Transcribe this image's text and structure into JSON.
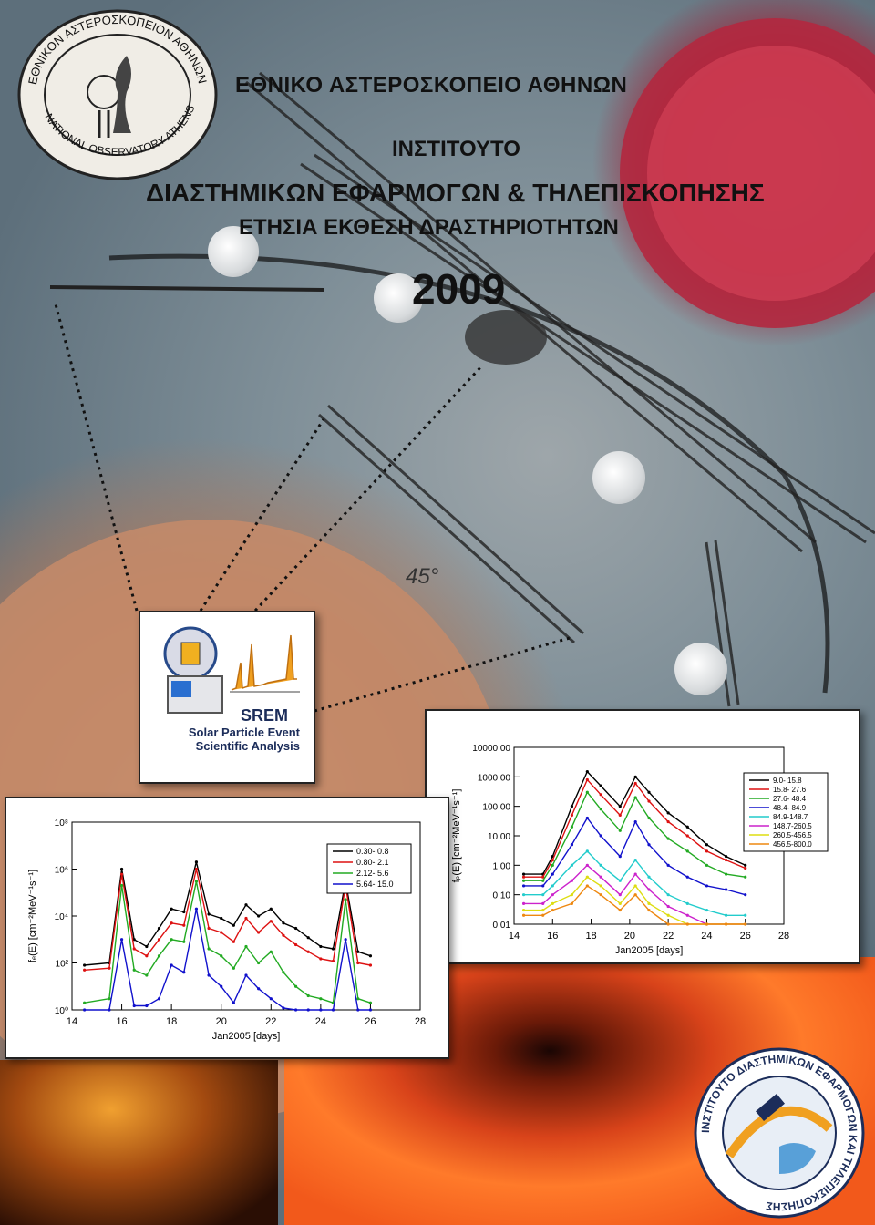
{
  "cover": {
    "title_line1": "ΕΘΝΙΚΟ ΑΣΤΕΡΟΣΚΟΠΕΙΟ ΑΘΗΝΩΝ",
    "title_line2": "ΙΝΣΤΙΤΟΥΤΟ",
    "title_line3": "ΔΙΑΣΤΗΜΙΚΩΝ ΕΦΑΡΜΟΓΩΝ & ΤΗΛΕΠΙΣΚΟΠΗΣΗΣ",
    "title_line4": "ΕΤΗΣΙΑ ΕΚΘΕΣΗ ΔΡΑΣΤΗΡΙΟΤΗΤΩΝ",
    "year": "2009",
    "map_angle_label": "45°"
  },
  "logos": {
    "observatory_seal_text_top": "ΕΘΝΙΚΟΝ ΑΣΤΕΡΟΣΚΟΠΕΙΟΝ ΑΘΗΝΩΝ",
    "observatory_seal_text_bottom": "NATIONAL OBSERVATORY ATHENS",
    "institute_seal_text": "ΙΝΣΤΙΤΟΥΤΟ ΔΙΑΣΤΗΜΙΚΩΝ ΕΦΑΡΜΟΓΩΝ ΚΑΙ ΤΗΛΕΠΙΣΚΟΠΗΣΗΣ"
  },
  "srem": {
    "title": "SREM",
    "subtitle_line1": "Solar Particle Event",
    "subtitle_line2": "Scientific Analysis"
  },
  "chart_data": [
    {
      "type": "line",
      "xlabel": "Jan2005 [days]",
      "ylabel": "fₑ(E) [cm⁻²MeV⁻¹s⁻¹]",
      "y_scale": "log",
      "xlim": [
        14,
        28
      ],
      "ylim": [
        1,
        100000000
      ],
      "x_ticks": [
        "14",
        "16",
        "18",
        "20",
        "22",
        "24",
        "26",
        "28"
      ],
      "y_ticks": [
        "10⁰",
        "10²",
        "10⁴",
        "10⁶",
        "10⁸"
      ],
      "legend_position": "top-right",
      "series": [
        {
          "name": "0.30-   0.8",
          "color": "#000000",
          "x": [
            14.5,
            15.5,
            16.0,
            16.5,
            17.0,
            17.5,
            18.0,
            18.5,
            19.0,
            19.5,
            20.0,
            20.5,
            21.0,
            21.5,
            22.0,
            22.5,
            23.0,
            23.5,
            24.0,
            24.5,
            25.0,
            25.5,
            26.0
          ],
          "y": [
            80,
            100,
            1000000,
            1000,
            500,
            3000,
            20000,
            15000,
            2000000,
            12000,
            8000,
            4000,
            30000,
            10000,
            20000,
            5000,
            3000,
            1200,
            500,
            400,
            300000,
            300,
            200
          ]
        },
        {
          "name": "0.80-   2.1",
          "color": "#dd1111",
          "x": [
            14.5,
            15.5,
            16.0,
            16.5,
            17.0,
            17.5,
            18.0,
            18.5,
            19.0,
            19.5,
            20.0,
            20.5,
            21.0,
            21.5,
            22.0,
            22.5,
            23.0,
            23.5,
            24.0,
            24.5,
            25.0,
            25.5,
            26.0
          ],
          "y": [
            50,
            60,
            600000,
            400,
            200,
            1000,
            5000,
            4000,
            1000000,
            3000,
            2000,
            800,
            8000,
            2000,
            6000,
            1500,
            600,
            300,
            150,
            120,
            200000,
            100,
            80
          ]
        },
        {
          "name": "2.12-   5.6",
          "color": "#22aa22",
          "x": [
            14.5,
            15.5,
            16.0,
            16.5,
            17.0,
            17.5,
            18.0,
            18.5,
            19.0,
            19.5,
            20.0,
            20.5,
            21.0,
            21.5,
            22.0,
            22.5,
            23.0,
            23.5,
            24.0,
            24.5,
            25.0,
            25.5,
            26.0
          ],
          "y": [
            2,
            3,
            200000,
            50,
            30,
            200,
            1000,
            800,
            300000,
            400,
            200,
            60,
            500,
            100,
            300,
            40,
            10,
            4,
            3,
            2,
            50000,
            3,
            2
          ]
        },
        {
          "name": "5.64-  15.0",
          "color": "#1111cc",
          "x": [
            14.5,
            15.5,
            16.0,
            16.5,
            17.0,
            17.5,
            18.0,
            18.5,
            19.0,
            19.5,
            20.0,
            20.5,
            21.0,
            21.5,
            22.0,
            22.5,
            23.0,
            23.5,
            24.0,
            24.5,
            25.0,
            25.5,
            26.0
          ],
          "y": [
            1,
            1,
            1000,
            1.5,
            1.5,
            3,
            80,
            40,
            20000,
            30,
            10,
            2,
            30,
            8,
            3,
            1.2,
            1,
            1,
            1,
            1,
            1000,
            1,
            1
          ]
        }
      ]
    },
    {
      "type": "line",
      "xlabel": "Jan2005 [days]",
      "ylabel": "fₚ(E) [cm⁻²MeV⁻¹s⁻¹]",
      "y_scale": "log",
      "xlim": [
        14,
        28
      ],
      "ylim": [
        0.01,
        10000
      ],
      "x_ticks": [
        "14",
        "16",
        "18",
        "20",
        "22",
        "24",
        "26",
        "28"
      ],
      "y_ticks": [
        "0.01",
        "0.10",
        "1.00",
        "10.00",
        "100.00",
        "1000.00",
        "10000.00"
      ],
      "legend_position": "top-right",
      "series": [
        {
          "name": "9.0-  15.8",
          "color": "#000000",
          "x": [
            14.5,
            15.5,
            16.0,
            17.0,
            17.8,
            18.5,
            19.5,
            20.3,
            21.0,
            22.0,
            23.0,
            24.0,
            25.0,
            26.0
          ],
          "y": [
            0.5,
            0.5,
            2,
            100,
            1500,
            500,
            100,
            1000,
            300,
            60,
            20,
            5,
            2,
            1
          ]
        },
        {
          "name": "15.8-  27.6",
          "color": "#dd1111",
          "x": [
            14.5,
            15.5,
            16.0,
            17.0,
            17.8,
            18.5,
            19.5,
            20.3,
            21.0,
            22.0,
            23.0,
            24.0,
            25.0,
            26.0
          ],
          "y": [
            0.4,
            0.4,
            1.5,
            50,
            800,
            250,
            50,
            600,
            150,
            30,
            10,
            3,
            1.5,
            0.8
          ]
        },
        {
          "name": "27.6-  48.4",
          "color": "#22aa22",
          "x": [
            14.5,
            15.5,
            16.0,
            17.0,
            17.8,
            18.5,
            19.5,
            20.3,
            21.0,
            22.0,
            23.0,
            24.0,
            25.0,
            26.0
          ],
          "y": [
            0.3,
            0.3,
            1,
            20,
            300,
            80,
            15,
            200,
            40,
            8,
            3,
            1,
            0.5,
            0.4
          ]
        },
        {
          "name": "48.4-  84.9",
          "color": "#1111cc",
          "x": [
            14.5,
            15.5,
            16.0,
            17.0,
            17.8,
            18.5,
            19.5,
            20.3,
            21.0,
            22.0,
            23.0,
            24.0,
            25.0,
            26.0
          ],
          "y": [
            0.2,
            0.2,
            0.5,
            5,
            40,
            10,
            2,
            30,
            5,
            1,
            0.4,
            0.2,
            0.15,
            0.1
          ]
        },
        {
          "name": "84.9-148.7",
          "color": "#22cccc",
          "x": [
            14.5,
            15.5,
            16.0,
            17.0,
            17.8,
            18.5,
            19.5,
            20.3,
            21.0,
            22.0,
            23.0,
            24.0,
            25.0,
            26.0
          ],
          "y": [
            0.1,
            0.1,
            0.2,
            1,
            3,
            1,
            0.3,
            1.5,
            0.4,
            0.1,
            0.05,
            0.03,
            0.02,
            0.02
          ]
        },
        {
          "name": "148.7-260.5",
          "color": "#cc22cc",
          "x": [
            14.5,
            15.5,
            16.0,
            17.0,
            17.8,
            18.5,
            19.5,
            20.3,
            21.0,
            22.0,
            23.0,
            24.0,
            25.0,
            26.0
          ],
          "y": [
            0.05,
            0.05,
            0.1,
            0.3,
            1,
            0.4,
            0.1,
            0.5,
            0.15,
            0.04,
            0.02,
            0.01,
            0.01,
            0.01
          ]
        },
        {
          "name": "260.5-456.5",
          "color": "#dddd11",
          "x": [
            14.5,
            15.5,
            16.0,
            17.0,
            17.8,
            18.5,
            19.5,
            20.3,
            21.0,
            22.0,
            23.0,
            24.0,
            25.0,
            26.0
          ],
          "y": [
            0.03,
            0.03,
            0.05,
            0.1,
            0.4,
            0.2,
            0.05,
            0.2,
            0.05,
            0.02,
            0.01,
            0.01,
            0.01,
            0.01
          ]
        },
        {
          "name": "456.5-800.0",
          "color": "#ee8811",
          "x": [
            14.5,
            15.5,
            16.0,
            17.0,
            17.8,
            18.5,
            19.5,
            20.3,
            21.0,
            22.0,
            23.0,
            24.0,
            25.0,
            26.0
          ],
          "y": [
            0.02,
            0.02,
            0.03,
            0.05,
            0.2,
            0.1,
            0.03,
            0.1,
            0.03,
            0.01,
            0.01,
            0.01,
            0.01,
            0.01
          ]
        }
      ]
    }
  ]
}
